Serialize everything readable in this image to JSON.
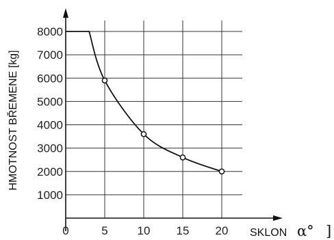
{
  "chart_data": {
    "type": "line",
    "title": "",
    "xlabel": "SKLON",
    "xlabel_symbol": "α°",
    "xlabel_bracket": "]",
    "ylabel": "HMOTNOST BŘEMENE [kg]",
    "xlim": [
      0,
      20
    ],
    "ylim": [
      0,
      8000
    ],
    "x_ticks": [
      0,
      5,
      10,
      15,
      20
    ],
    "x_tick_labels": [
      "0",
      "5",
      "10",
      "15",
      "20"
    ],
    "y_ticks": [
      1000,
      2000,
      3000,
      4000,
      5000,
      6000,
      7000,
      8000
    ],
    "y_tick_labels": [
      "1000",
      "2000",
      "3000",
      "4000",
      "5000",
      "6000",
      "7000",
      "8000"
    ],
    "grid": true,
    "legend": "none",
    "series": [
      {
        "x": [
          0,
          3,
          5,
          10,
          15,
          20
        ],
        "y": [
          8000,
          8000,
          5900,
          3600,
          2600,
          2000
        ],
        "markers": [
          false,
          false,
          true,
          true,
          true,
          true
        ]
      }
    ],
    "colors": {
      "line": "#111111",
      "grid": "#333333",
      "axis": "#111111"
    }
  }
}
